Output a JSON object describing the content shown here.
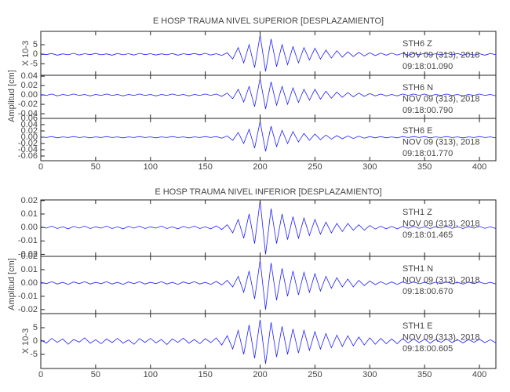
{
  "chart_data": [
    {
      "type": "line",
      "title": "E HOSP TRAUMA NIVEL SUPERIOR [DESPLAZAMIENTO]",
      "y_label": "Amplitud [cm]",
      "xlim": [
        0,
        415
      ],
      "xticks": [
        0,
        50,
        100,
        150,
        200,
        250,
        300,
        350,
        400
      ],
      "x": [
        0,
        5,
        10,
        15,
        20,
        25,
        30,
        35,
        40,
        45,
        50,
        55,
        60,
        65,
        70,
        75,
        80,
        85,
        90,
        95,
        100,
        105,
        110,
        115,
        120,
        125,
        130,
        135,
        140,
        145,
        150,
        155,
        160,
        165,
        170,
        175,
        180,
        185,
        190,
        195,
        200,
        205,
        210,
        215,
        220,
        225,
        230,
        235,
        240,
        245,
        250,
        255,
        260,
        265,
        270,
        275,
        280,
        285,
        290,
        295,
        300,
        305,
        310,
        315,
        320,
        325,
        330,
        335,
        340,
        345,
        350,
        355,
        360,
        365,
        370,
        375,
        380,
        385,
        390,
        395,
        400,
        405,
        410,
        415
      ],
      "panels": [
        {
          "scale_label": "X 10-3",
          "ylim": [
            -11,
            12
          ],
          "yticks": [
            5,
            0,
            -5
          ],
          "color": "#1f1fff",
          "annotations": [
            "STH6    Z",
            "NOV 09 (313), 2018",
            "09:18:01.090"
          ],
          "values": [
            0.3,
            -0.2,
            0.4,
            -0.5,
            0.2,
            -0.3,
            0.5,
            -0.4,
            0.3,
            -0.2,
            0.4,
            -0.3,
            0.2,
            -0.5,
            0.4,
            -0.3,
            0.3,
            -0.4,
            0.5,
            -0.2,
            0.3,
            -0.4,
            0.2,
            -0.3,
            0.4,
            -0.5,
            0.3,
            -0.2,
            0.4,
            -0.3,
            0.5,
            -0.4,
            0.3,
            -0.6,
            0.8,
            -2.5,
            3.5,
            -4.5,
            5,
            -7,
            10,
            -9,
            8,
            -6.5,
            5,
            -5.5,
            4,
            -4.5,
            3.5,
            -3,
            3.2,
            -2.5,
            2.2,
            -2,
            1.8,
            -1.5,
            1.3,
            -1.2,
            1,
            -0.9,
            0.8,
            -0.7,
            0.6,
            -0.5,
            0.6,
            -0.4,
            0.5,
            -0.5,
            0.4,
            -0.3,
            0.5,
            -0.4,
            0.3,
            -0.4,
            0.5,
            -0.3,
            0.4,
            -0.5,
            0.3,
            -0.4,
            0.3,
            -0.5,
            0.4,
            -0.3
          ]
        },
        {
          "ylim": [
            -0.05,
            0.042
          ],
          "yticks": [
            0.04,
            0.02,
            {
              "value": 0,
              "label": "0.00"
            },
            -0.02,
            -0.04
          ],
          "color": "#1f1fff",
          "annotations": [
            "STH6    N",
            "NOV 09 (313), 2018",
            "09:18:00.790"
          ],
          "values": [
            0.001,
            -0.001,
            0.002,
            -0.002,
            0.001,
            -0.001,
            0.002,
            -0.001,
            0.001,
            -0.002,
            0.001,
            -0.001,
            0.002,
            -0.001,
            0.001,
            -0.002,
            0.001,
            -0.001,
            0.002,
            -0.001,
            0.001,
            -0.002,
            0.001,
            -0.001,
            0.002,
            -0.001,
            0.001,
            -0.002,
            0.001,
            -0.001,
            0.002,
            -0.001,
            0.002,
            -0.003,
            0.004,
            -0.008,
            0.012,
            -0.015,
            0.018,
            -0.025,
            0.035,
            -0.03,
            0.028,
            -0.022,
            0.018,
            -0.02,
            0.015,
            -0.016,
            0.012,
            -0.011,
            0.012,
            -0.009,
            0.008,
            -0.007,
            0.006,
            -0.005,
            0.005,
            -0.004,
            0.004,
            -0.003,
            0.003,
            -0.002,
            0.002,
            -0.002,
            0.001,
            -0.002,
            0.002,
            -0.001,
            0.002,
            -0.001,
            0.002,
            -0.002,
            0.001,
            -0.001,
            0.002,
            -0.001,
            0.001,
            -0.002,
            0.001,
            -0.001,
            0.002,
            -0.001,
            0.001,
            -0.002
          ]
        },
        {
          "ylim": [
            -0.075,
            0.06
          ],
          "yticks": [
            0.06,
            0.04,
            0.02,
            {
              "value": 0,
              "label": "0.00"
            },
            -0.02,
            -0.04,
            -0.06
          ],
          "color": "#1f1fff",
          "annotations": [
            "STH6    E",
            "NOV 09 (313), 2018",
            "09:18:01.770"
          ],
          "values": [
            0.001,
            -0.001,
            0.002,
            -0.002,
            0.001,
            -0.001,
            0.002,
            -0.001,
            0.001,
            -0.002,
            0.001,
            -0.001,
            0.002,
            -0.001,
            0.001,
            -0.002,
            0.001,
            -0.001,
            0.002,
            -0.001,
            0.001,
            -0.002,
            0.001,
            -0.001,
            0.002,
            -0.001,
            0.001,
            -0.002,
            0.001,
            -0.001,
            0.002,
            -0.001,
            0.002,
            -0.003,
            0.004,
            -0.01,
            0.015,
            -0.02,
            0.025,
            -0.035,
            0.05,
            -0.045,
            0.035,
            -0.03,
            0.022,
            -0.02,
            0.018,
            -0.015,
            0.012,
            -0.01,
            0.01,
            -0.008,
            0.007,
            -0.006,
            0.005,
            -0.005,
            0.004,
            -0.004,
            0.003,
            -0.003,
            0.002,
            -0.002,
            0.002,
            -0.002,
            0.001,
            -0.002,
            0.002,
            -0.001,
            0.002,
            -0.001,
            0.002,
            -0.002,
            0.001,
            -0.001,
            0.002,
            -0.001,
            0.001,
            -0.002,
            0.001,
            -0.001,
            0.002,
            -0.001,
            0.001,
            -0.002
          ]
        }
      ]
    },
    {
      "type": "line",
      "title": "E HOSP TRAUMA NIVEL INFERIOR [DESPLAZAMIENTO]",
      "y_label": "Amplitud [cm]",
      "xlim": [
        0,
        415
      ],
      "xticks": [
        0,
        50,
        100,
        150,
        200,
        250,
        300,
        350,
        400
      ],
      "x": [
        0,
        5,
        10,
        15,
        20,
        25,
        30,
        35,
        40,
        45,
        50,
        55,
        60,
        65,
        70,
        75,
        80,
        85,
        90,
        95,
        100,
        105,
        110,
        115,
        120,
        125,
        130,
        135,
        140,
        145,
        150,
        155,
        160,
        165,
        170,
        175,
        180,
        185,
        190,
        195,
        200,
        205,
        210,
        215,
        220,
        225,
        230,
        235,
        240,
        245,
        250,
        255,
        260,
        265,
        270,
        275,
        280,
        285,
        290,
        295,
        300,
        305,
        310,
        315,
        320,
        325,
        330,
        335,
        340,
        345,
        350,
        355,
        360,
        365,
        370,
        375,
        380,
        385,
        390,
        395,
        400,
        405,
        410,
        415
      ],
      "panels": [
        {
          "ylim": [
            -0.0215,
            0.0205
          ],
          "yticks": [
            0.02,
            0.01,
            {
              "value": 0,
              "label": "0.00"
            },
            -0.01,
            -0.02
          ],
          "color": "#1f1fff",
          "annotations": [
            "STH1    Z",
            "NOV 09 (313), 2018",
            "09:18:01.465"
          ],
          "values": [
            0.0005,
            -0.0005,
            0.001,
            -0.0008,
            0.0005,
            -0.001,
            0.0008,
            -0.0005,
            0.001,
            -0.0008,
            0.0005,
            -0.0005,
            0.001,
            -0.0008,
            0.0005,
            -0.001,
            0.0008,
            -0.0005,
            0.001,
            -0.0008,
            0.0005,
            -0.0005,
            0.001,
            -0.0008,
            0.0005,
            -0.001,
            0.0008,
            -0.0005,
            0.001,
            -0.0008,
            0.0005,
            -0.001,
            0.0012,
            -0.0015,
            0.002,
            -0.004,
            0.006,
            -0.008,
            0.01,
            -0.012,
            0.02,
            -0.02,
            0.014,
            -0.012,
            0.01,
            -0.009,
            0.008,
            -0.008,
            0.007,
            -0.006,
            0.006,
            -0.005,
            0.004,
            -0.004,
            0.003,
            -0.003,
            0.003,
            -0.002,
            0.002,
            -0.002,
            0.0015,
            -0.0012,
            0.001,
            -0.001,
            0.0008,
            -0.001,
            0.0008,
            -0.0006,
            0.0008,
            -0.0006,
            0.0005,
            -0.0008,
            0.0006,
            -0.0005,
            0.0008,
            -0.0006,
            0.0005,
            -0.0008,
            0.0006,
            -0.0005,
            0.0008,
            -0.0006,
            0.0005,
            -0.0008
          ]
        },
        {
          "ylim": [
            -0.023,
            0.02
          ],
          "yticks": [
            0.02,
            0.01,
            {
              "value": 0,
              "label": "0.00"
            },
            -0.01,
            -0.02
          ],
          "color": "#1f1fff",
          "annotations": [
            "STH1    N",
            "NOV 09 (313), 2018",
            "09:18:00.670"
          ],
          "values": [
            0.0005,
            -0.0005,
            0.001,
            -0.0008,
            0.0005,
            -0.001,
            0.0008,
            -0.0005,
            0.001,
            -0.0008,
            0.0005,
            -0.0005,
            0.001,
            -0.0008,
            0.0005,
            -0.001,
            0.0008,
            -0.0005,
            0.001,
            -0.0008,
            0.0005,
            -0.0005,
            0.001,
            -0.0008,
            0.0005,
            -0.001,
            0.0008,
            -0.0005,
            0.001,
            -0.0008,
            0.0005,
            -0.001,
            0.0012,
            -0.0015,
            0.002,
            -0.003,
            0.005,
            -0.007,
            0.009,
            -0.012,
            0.017,
            -0.02,
            0.015,
            -0.013,
            0.011,
            -0.01,
            0.009,
            -0.009,
            0.008,
            -0.007,
            0.007,
            -0.006,
            0.005,
            -0.004,
            0.004,
            -0.003,
            0.003,
            -0.003,
            0.002,
            -0.002,
            0.0015,
            -0.0012,
            0.001,
            -0.001,
            0.0008,
            -0.001,
            0.0008,
            -0.0006,
            0.0008,
            -0.0006,
            0.0005,
            -0.0008,
            0.0006,
            -0.0005,
            0.0008,
            -0.0006,
            0.0005,
            -0.0008,
            0.0006,
            -0.0005,
            0.0008,
            -0.0006,
            0.0005,
            -0.0008
          ]
        },
        {
          "scale_label": "X 10-3",
          "ylim": [
            -10.3,
            10.3
          ],
          "yticks": [
            5,
            0,
            -5
          ],
          "color": "#1f1fff",
          "annotations": [
            "STH1    E",
            "NOV 09 (313), 2018",
            "09:18:00.605"
          ],
          "values": [
            0.5,
            -0.8,
            1,
            -0.5,
            0.8,
            -1.2,
            0.6,
            -0.4,
            1.2,
            -0.8,
            0.5,
            -1,
            0.8,
            -0.6,
            1,
            -0.8,
            0.4,
            -1.2,
            0.9,
            -0.5,
            1,
            -0.7,
            0.6,
            -1.3,
            0.8,
            -0.5,
            1.1,
            -0.8,
            0.6,
            -1,
            0.9,
            -0.6,
            1.2,
            -1.5,
            2,
            -3,
            4,
            -5,
            6,
            -6.5,
            8,
            -8.5,
            7,
            -6,
            5.5,
            -5,
            4.5,
            -4.5,
            4,
            -3.5,
            3.5,
            -3,
            2.8,
            -2.5,
            2.2,
            -2,
            2,
            -1.8,
            1.5,
            -1.5,
            1.2,
            -1.2,
            1,
            -1,
            0.8,
            -1,
            0.9,
            -0.7,
            0.8,
            -0.6,
            0.7,
            -0.8,
            0.6,
            -0.5,
            0.8,
            -0.6,
            0.5,
            -0.7,
            0.6,
            -0.5,
            0.7,
            -0.6,
            0.5,
            -0.7
          ]
        }
      ]
    }
  ]
}
